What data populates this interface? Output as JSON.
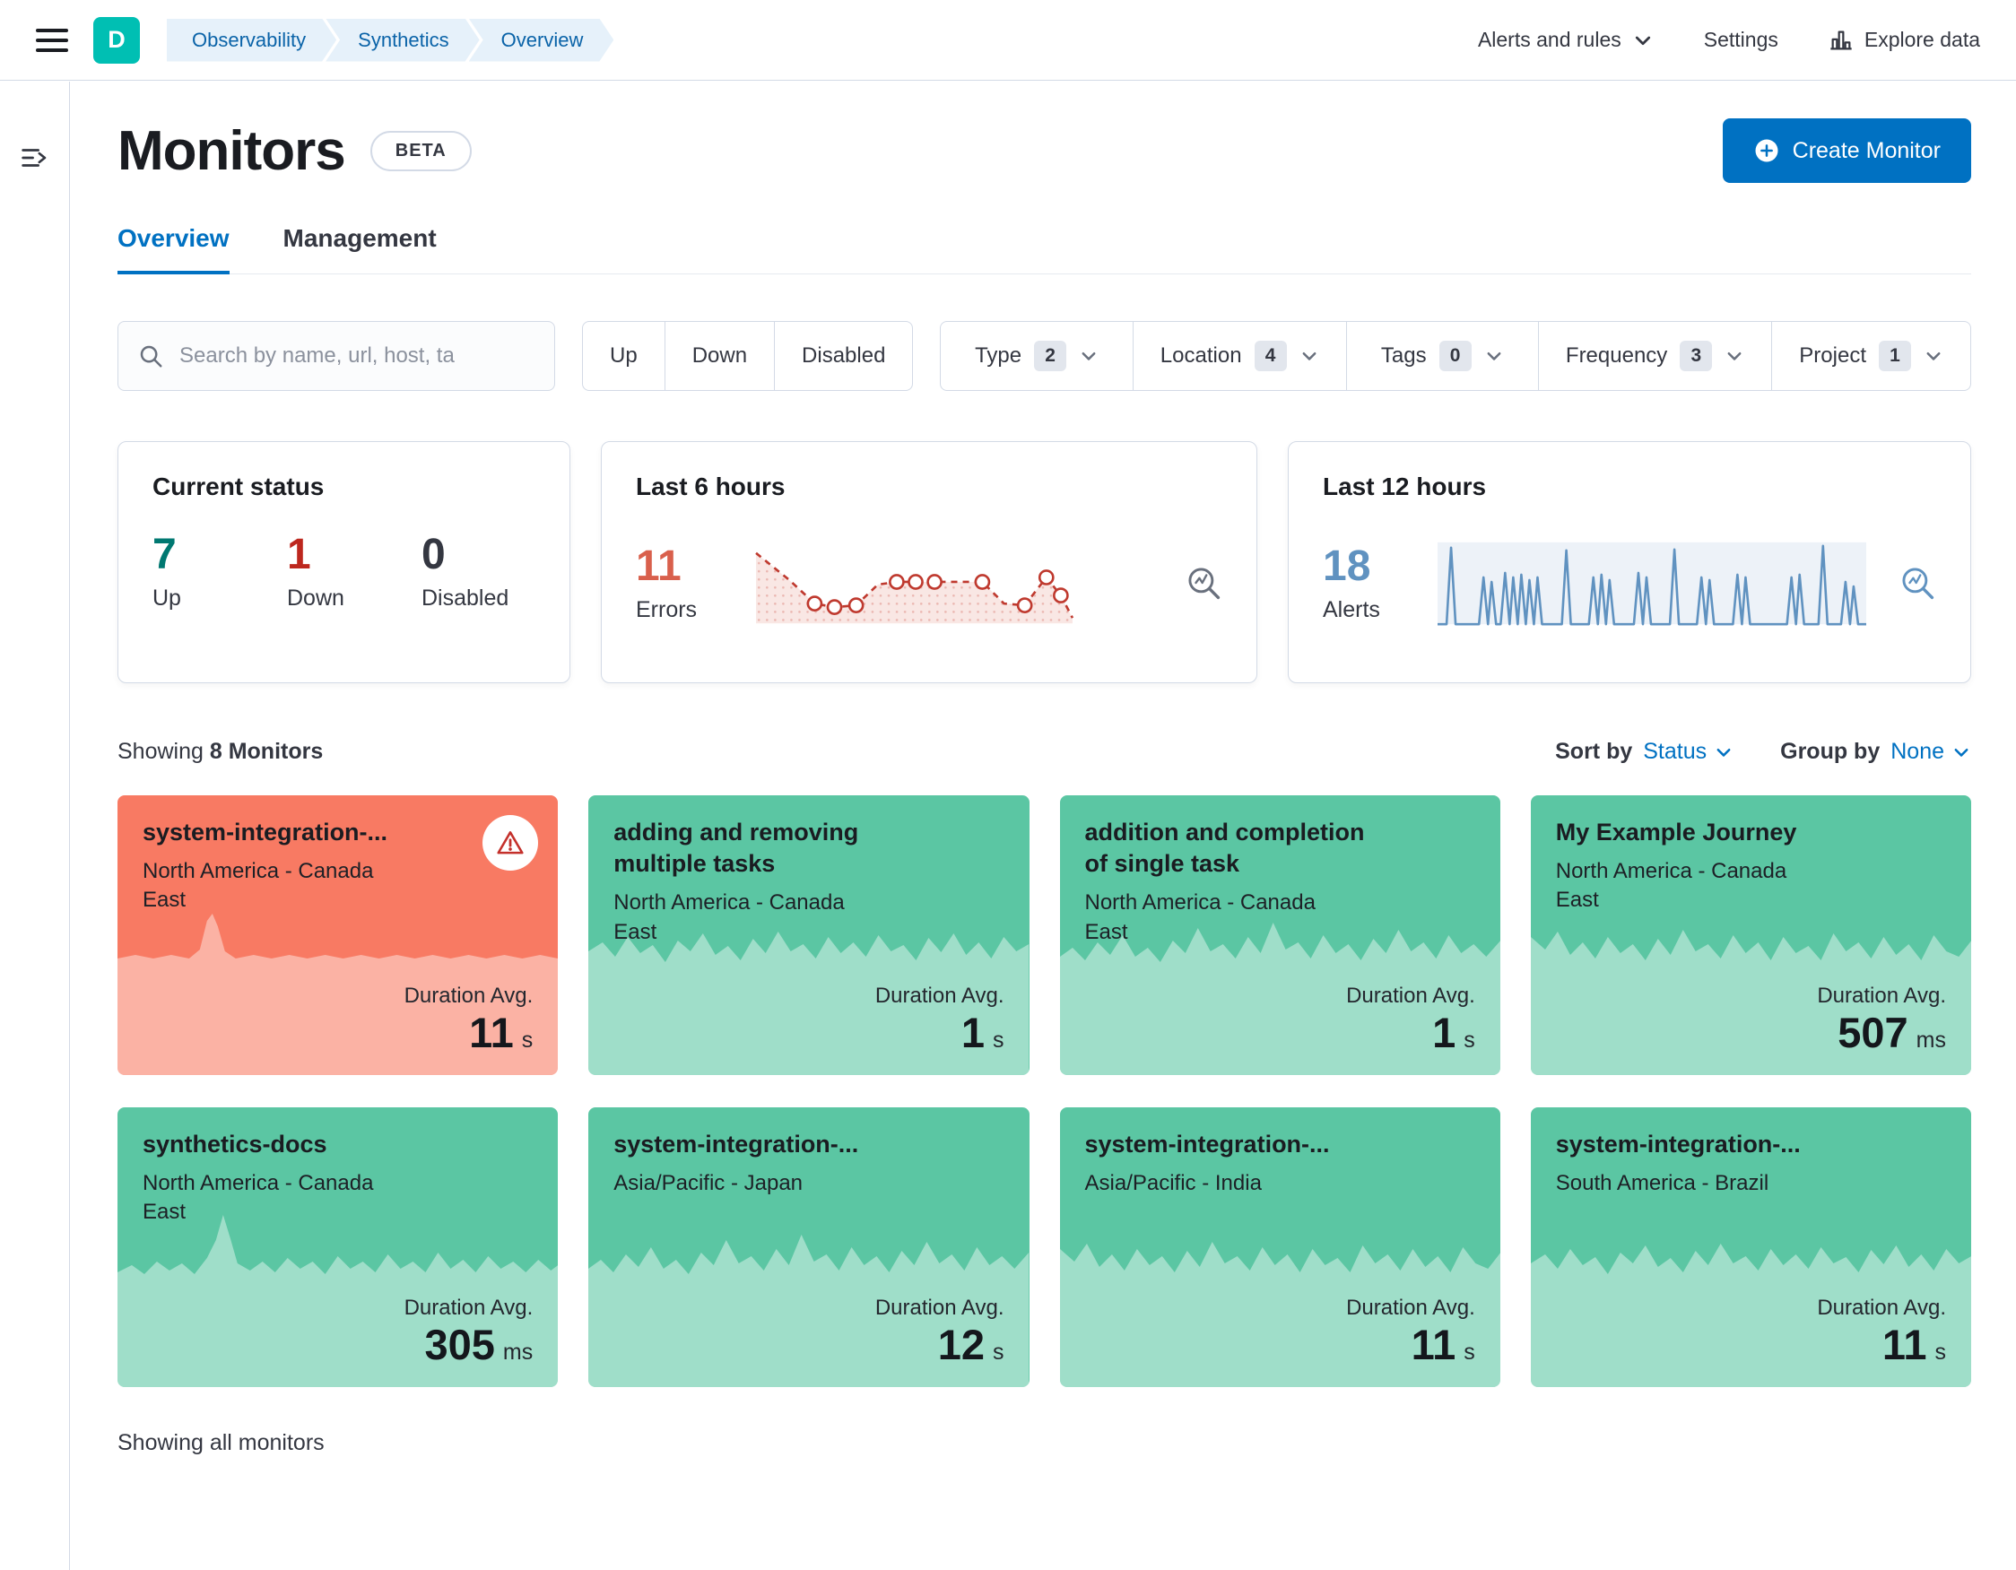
{
  "topbar": {
    "avatar": "D",
    "breadcrumbs": [
      "Observability",
      "Synthetics",
      "Overview"
    ],
    "alerts_menu": "Alerts and rules",
    "settings": "Settings",
    "explore": "Explore data"
  },
  "header": {
    "title": "Monitors",
    "beta": "BETA",
    "create_button": "Create Monitor"
  },
  "tabs": [
    {
      "label": "Overview",
      "active": true
    },
    {
      "label": "Management",
      "active": false
    }
  ],
  "search": {
    "placeholder": "Search by name, url, host, ta"
  },
  "status_filters": [
    "Up",
    "Down",
    "Disabled"
  ],
  "filters": [
    {
      "label": "Type",
      "count": 2
    },
    {
      "label": "Location",
      "count": 4
    },
    {
      "label": "Tags",
      "count": 0
    },
    {
      "label": "Frequency",
      "count": 3
    },
    {
      "label": "Project",
      "count": 1
    }
  ],
  "summary": {
    "current_status": {
      "title": "Current status",
      "stats": [
        {
          "value": "7",
          "label": "Up"
        },
        {
          "value": "1",
          "label": "Down"
        },
        {
          "value": "0",
          "label": "Disabled"
        }
      ]
    },
    "last6": {
      "title": "Last 6 hours",
      "value": "11",
      "label": "Errors"
    },
    "last12": {
      "title": "Last 12 hours",
      "value": "18",
      "label": "Alerts"
    }
  },
  "list": {
    "showing_prefix": "Showing",
    "showing_count": "8 Monitors",
    "sort_by_label": "Sort by",
    "sort_by_value": "Status",
    "group_by_label": "Group by",
    "group_by_value": "None",
    "duration_label": "Duration Avg.",
    "footer": "Showing all monitors"
  },
  "monitors": [
    {
      "name": "system-integration-...",
      "location": "North America - Canada East",
      "duration": "11",
      "unit": "s",
      "status": "down"
    },
    {
      "name": "adding and removing multiple tasks",
      "location": "North America - Canada East",
      "duration": "1",
      "unit": "s",
      "status": "up"
    },
    {
      "name": "addition and completion of single task",
      "location": "North America - Canada East",
      "duration": "1",
      "unit": "s",
      "status": "up"
    },
    {
      "name": "My Example Journey",
      "location": "North America - Canada East",
      "duration": "507",
      "unit": "ms",
      "status": "up"
    },
    {
      "name": "synthetics-docs",
      "location": "North America - Canada East",
      "duration": "305",
      "unit": "ms",
      "status": "up"
    },
    {
      "name": "system-integration-...",
      "location": "Asia/Pacific - Japan",
      "duration": "12",
      "unit": "s",
      "status": "up"
    },
    {
      "name": "system-integration-...",
      "location": "Asia/Pacific - India",
      "duration": "11",
      "unit": "s",
      "status": "up"
    },
    {
      "name": "system-integration-...",
      "location": "South America - Brazil",
      "duration": "11",
      "unit": "s",
      "status": "up"
    }
  ],
  "icons": {
    "menu": "hamburger",
    "search": "magnifier",
    "explore_data": "bar-chart",
    "inspect": "magnifier-with-chart",
    "warning": "alert-triangle",
    "create": "plus-in-circle",
    "chevron": "chevron-down",
    "expand": "menu-right"
  },
  "colors": {
    "accent": "#0071c2",
    "border": "#d3dae6",
    "success_text": "#007871",
    "danger_text": "#bd271e",
    "errors_red": "#d9604c",
    "alerts_blue": "#6092c0",
    "card_up": "#5bc6a3",
    "card_down": "#f87a63",
    "avatar_teal": "#00bfb3",
    "breadcrumb_bg": "#e6f1fa",
    "breadcrumb_text": "#0a63a8"
  }
}
